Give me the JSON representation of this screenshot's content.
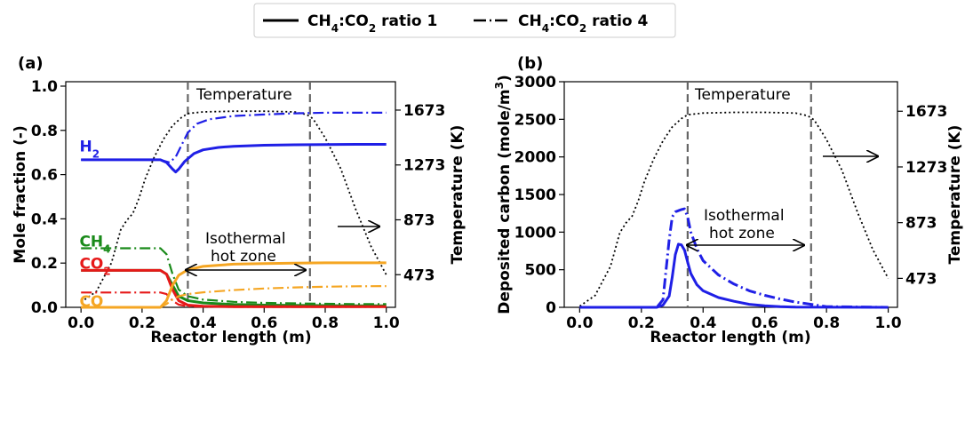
{
  "legend": {
    "items": [
      {
        "prefix": "CH",
        "sub1": "4",
        "mid": ":CO",
        "sub2": "2",
        "suffix": " ratio 1",
        "style": "solid"
      },
      {
        "prefix": "CH",
        "sub1": "4",
        "mid": ":CO",
        "sub2": "2",
        "suffix": " ratio 4",
        "style": "dashdot"
      }
    ],
    "placement": "top-center"
  },
  "chart_data": [
    {
      "type": "line",
      "panel_label": "(a)",
      "xlabel": "Reactor length (m)",
      "ylabel": "Mole fraction (-)",
      "ylabel2": "Temperature (K)",
      "xlim": [
        -0.05,
        1.03
      ],
      "ylim": [
        0,
        1.02
      ],
      "xticks": [
        0.0,
        0.2,
        0.4,
        0.6,
        0.8,
        1.0
      ],
      "yticks": [
        0.0,
        0.2,
        0.4,
        0.6,
        0.8,
        1.0
      ],
      "y2lim": [
        235,
        1880
      ],
      "y2ticks": [
        473,
        873,
        1273,
        1673
      ],
      "x_tick_labels": [
        "0.0",
        "0.2",
        "0.4",
        "0.6",
        "0.8",
        "1.0"
      ],
      "y_tick_labels": [
        "0.0",
        "0.2",
        "0.4",
        "0.6",
        "0.8",
        "1.0"
      ],
      "y2_tick_labels": [
        "473",
        "873",
        "1273",
        "1673"
      ],
      "hot_zone": [
        0.35,
        0.75
      ],
      "annotations": {
        "temperature": "Temperature",
        "isothermal_1": "Isothermal",
        "isothermal_2": "hot zone"
      },
      "species_labels": [
        {
          "main": "H",
          "sub": "2",
          "color": "#1f1fe6",
          "x": -0.005,
          "y": 0.705
        },
        {
          "main": "CH",
          "sub": "4",
          "color": "#1a8a1a",
          "x": -0.005,
          "y": 0.275
        },
        {
          "main": "CO",
          "sub": "2",
          "color": "#e61919",
          "x": -0.005,
          "y": 0.175
        },
        {
          "main": "CO",
          "sub": "",
          "color": "#f5a623",
          "x": -0.005,
          "y": 0.005
        }
      ],
      "temperature": {
        "x": [
          0.0,
          0.05,
          0.1,
          0.13,
          0.15,
          0.17,
          0.19,
          0.21,
          0.24,
          0.27,
          0.3,
          0.33,
          0.35,
          0.4,
          0.5,
          0.6,
          0.7,
          0.74,
          0.76,
          0.8,
          0.85,
          0.9,
          0.95,
          1.0
        ],
        "y": [
          273,
          350,
          560,
          800,
          870,
          920,
          1030,
          1170,
          1330,
          1460,
          1560,
          1620,
          1648,
          1660,
          1665,
          1665,
          1660,
          1640,
          1610,
          1470,
          1250,
          950,
          680,
          473
        ]
      },
      "series": [
        {
          "name": "H2 ratio 1",
          "color": "#1f1fe6",
          "style": "solid",
          "width": 3,
          "x": [
            0.0,
            0.26,
            0.28,
            0.3,
            0.31,
            0.32,
            0.34,
            0.37,
            0.4,
            0.45,
            0.5,
            0.6,
            0.7,
            0.8,
            0.9,
            1.0
          ],
          "y": [
            0.667,
            0.667,
            0.655,
            0.625,
            0.612,
            0.625,
            0.66,
            0.695,
            0.712,
            0.723,
            0.728,
            0.733,
            0.735,
            0.736,
            0.737,
            0.737
          ]
        },
        {
          "name": "H2 ratio 4",
          "color": "#1f1fe6",
          "style": "dashdot",
          "width": 2.2,
          "x": [
            0.0,
            0.26,
            0.29,
            0.31,
            0.33,
            0.35,
            0.38,
            0.42,
            0.5,
            0.6,
            0.7,
            0.8,
            0.9,
            1.0
          ],
          "y": [
            0.667,
            0.667,
            0.655,
            0.68,
            0.735,
            0.79,
            0.83,
            0.85,
            0.865,
            0.872,
            0.877,
            0.88,
            0.88,
            0.88
          ]
        },
        {
          "name": "CH4 ratio 1",
          "color": "#1a8a1a",
          "style": "solid",
          "width": 3,
          "x": [
            0.0,
            0.26,
            0.28,
            0.3,
            0.32,
            0.35,
            0.4,
            0.5,
            0.6,
            0.7,
            0.8,
            0.9,
            1.0
          ],
          "y": [
            0.167,
            0.167,
            0.15,
            0.1,
            0.05,
            0.03,
            0.02,
            0.013,
            0.01,
            0.009,
            0.008,
            0.007,
            0.007
          ]
        },
        {
          "name": "CH4 ratio 4",
          "color": "#1a8a1a",
          "style": "dashdot",
          "width": 2.2,
          "x": [
            0.0,
            0.26,
            0.28,
            0.3,
            0.32,
            0.35,
            0.4,
            0.5,
            0.6,
            0.7,
            0.8,
            0.9,
            1.0
          ],
          "y": [
            0.267,
            0.267,
            0.24,
            0.15,
            0.08,
            0.05,
            0.035,
            0.025,
            0.02,
            0.018,
            0.016,
            0.015,
            0.015
          ]
        },
        {
          "name": "CO2 ratio 1",
          "color": "#e61919",
          "style": "solid",
          "width": 3,
          "x": [
            0.0,
            0.26,
            0.28,
            0.3,
            0.32,
            0.35,
            0.4,
            0.5,
            0.6,
            0.7,
            0.8,
            0.9,
            1.0
          ],
          "y": [
            0.167,
            0.167,
            0.15,
            0.08,
            0.03,
            0.01,
            0.005,
            0.003,
            0.003,
            0.003,
            0.003,
            0.003,
            0.003
          ]
        },
        {
          "name": "CO2 ratio 4",
          "color": "#e61919",
          "style": "dashdot",
          "width": 2.2,
          "x": [
            0.0,
            0.26,
            0.28,
            0.3,
            0.32,
            0.35,
            0.4,
            0.5,
            0.6,
            0.8,
            1.0
          ],
          "y": [
            0.067,
            0.067,
            0.06,
            0.03,
            0.012,
            0.005,
            0.003,
            0.002,
            0.002,
            0.002,
            0.002
          ]
        },
        {
          "name": "CO ratio 1",
          "color": "#f5a623",
          "style": "solid",
          "width": 3,
          "x": [
            0.0,
            0.26,
            0.28,
            0.3,
            0.32,
            0.35,
            0.4,
            0.5,
            0.6,
            0.7,
            0.8,
            0.9,
            1.0
          ],
          "y": [
            0.0,
            0.0,
            0.03,
            0.1,
            0.145,
            0.17,
            0.185,
            0.195,
            0.198,
            0.2,
            0.201,
            0.201,
            0.201
          ]
        },
        {
          "name": "CO ratio 4",
          "color": "#f5a623",
          "style": "dashdot",
          "width": 2.2,
          "x": [
            0.0,
            0.26,
            0.28,
            0.3,
            0.32,
            0.35,
            0.4,
            0.5,
            0.6,
            0.7,
            0.8,
            0.9,
            1.0
          ],
          "y": [
            0.0,
            0.0,
            0.015,
            0.035,
            0.05,
            0.06,
            0.068,
            0.078,
            0.085,
            0.09,
            0.093,
            0.095,
            0.096
          ]
        }
      ]
    },
    {
      "type": "line",
      "panel_label": "(b)",
      "xlabel": "Reactor length (m)",
      "ylabel_main": "Deposited carbon (mole/m",
      "ylabel_sup": "3",
      "ylabel_end": ")",
      "ylabel2": "Temperature (K)",
      "xlim": [
        -0.05,
        1.03
      ],
      "ylim": [
        0,
        3000
      ],
      "xticks": [
        0.0,
        0.2,
        0.4,
        0.6,
        0.8,
        1.0
      ],
      "yticks": [
        0,
        500,
        1000,
        1500,
        2000,
        2500,
        3000
      ],
      "y2lim": [
        265,
        1885
      ],
      "y2ticks": [
        473,
        873,
        1273,
        1673
      ],
      "x_tick_labels": [
        "0.0",
        "0.2",
        "0.4",
        "0.6",
        "0.8",
        "1.0"
      ],
      "y_tick_labels": [
        "0",
        "500",
        "1000",
        "1500",
        "2000",
        "2500",
        "3000"
      ],
      "y2_tick_labels": [
        "473",
        "873",
        "1273",
        "1673"
      ],
      "hot_zone": [
        0.35,
        0.75
      ],
      "annotations": {
        "temperature": "Temperature",
        "isothermal_1": "Isothermal",
        "isothermal_2": "hot zone"
      },
      "temperature": {
        "x": [
          0.0,
          0.05,
          0.1,
          0.13,
          0.15,
          0.17,
          0.19,
          0.21,
          0.24,
          0.27,
          0.3,
          0.33,
          0.35,
          0.4,
          0.5,
          0.6,
          0.7,
          0.74,
          0.76,
          0.8,
          0.85,
          0.9,
          0.95,
          1.0
        ],
        "y": [
          273,
          350,
          560,
          800,
          870,
          920,
          1030,
          1170,
          1330,
          1460,
          1560,
          1620,
          1648,
          1660,
          1665,
          1665,
          1660,
          1640,
          1610,
          1470,
          1250,
          950,
          680,
          473
        ]
      },
      "series": [
        {
          "name": "Carbon ratio 1",
          "color": "#1f1fe6",
          "style": "solid",
          "width": 3,
          "x": [
            0.0,
            0.25,
            0.27,
            0.29,
            0.3,
            0.31,
            0.32,
            0.33,
            0.34,
            0.35,
            0.36,
            0.38,
            0.4,
            0.45,
            0.5,
            0.55,
            0.6,
            0.65,
            0.7,
            1.0
          ],
          "y": [
            0,
            0,
            30,
            150,
            400,
            700,
            840,
            830,
            760,
            600,
            450,
            300,
            220,
            130,
            80,
            40,
            20,
            8,
            2,
            0
          ]
        },
        {
          "name": "Carbon ratio 4",
          "color": "#1f1fe6",
          "style": "dashdot",
          "width": 3,
          "x": [
            0.0,
            0.25,
            0.27,
            0.28,
            0.29,
            0.3,
            0.31,
            0.33,
            0.34,
            0.35,
            0.36,
            0.38,
            0.4,
            0.45,
            0.5,
            0.55,
            0.6,
            0.65,
            0.7,
            0.75,
            0.8,
            1.0
          ],
          "y": [
            0,
            0,
            100,
            500,
            900,
            1200,
            1270,
            1300,
            1310,
            1200,
            1000,
            780,
            620,
            430,
            310,
            220,
            160,
            110,
            70,
            40,
            10,
            0
          ]
        }
      ]
    }
  ]
}
